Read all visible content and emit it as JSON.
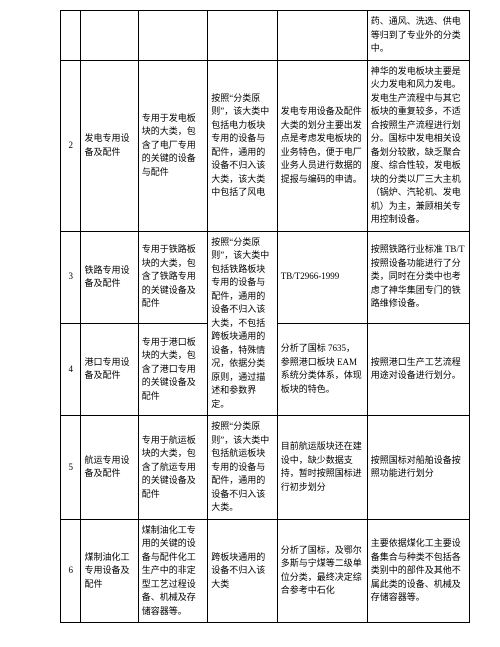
{
  "rows": [
    {
      "id": "",
      "name": "",
      "desc": "",
      "principle": "",
      "analysis": "",
      "note": "药、通风、洗选、供电等归到了专业外的分类中。"
    },
    {
      "id": "2",
      "name": "发电专用设备及配件",
      "desc": "专用于发电板块的大类，包含了电厂专用的关键的设备与配件",
      "principle": "按照“分类原则”，该大类中包括电力板块专用的设备与配件，通用的设备不归入该大类，该大类中包括了风电",
      "analysis": "发电专用设备及配件大类的划分主要出发点是考虑发电板块的业务特色，便于电厂业务人员进行数据的提报与编码的申请。",
      "note": "神华的发电板块主要是火力发电和风力发电。发电生产流程中与其它板块的重复较多，不适合按照生产流程进行划分。国标中发电相关设备划分较散，缺乏聚合度、综合性较，发电板块的分类以厂三大主机（锅炉、汽轮机、发电机）为主，兼顾相关专用控制设备。"
    },
    {
      "id": "3",
      "name": "铁路专用设备及配件",
      "desc": "专用于铁路板块的大类，包含了铁路专用的关键设备及配件",
      "principle": "按照“分类原则”，该大类中包括铁路板块专用的设备与配件，通用的设备不归入该大类，不包括跨板块通用的设备，特殊情况，依据分类原则，通过描述和参数界定。",
      "analysis": "TB/T2966-1999",
      "note": "按照铁路行业标准 TB/T 按照设备功能进行了分类，同时在分类中也考虑了神华集团专门的铁路维修设备。"
    },
    {
      "id": "4",
      "name": "港口专用设备及配件",
      "desc": "专用于港口板块的大类，包含了港口专用的关键设备及配件",
      "principle": "",
      "analysis": "分析了国标 7635，参照港口板块 EAM 系统分类体系，体现板块的特色。",
      "note": "按照港口生产工艺流程用途对设备进行划分。"
    },
    {
      "id": "5",
      "name": "航运专用设备及配件",
      "desc": "专用于航运板块的大类，包含了航运专用的关键设备及配件",
      "principle": "按照“分类原则”，该大类中包括航运板块专用的设备与配件，通用的设备不归入该大类。",
      "analysis": "目前航运版块还在建设中，缺少数据支持，暂时按照国标进行初步划分",
      "note": "按照国标对船舶设备按照功能进行划分"
    },
    {
      "id": "6",
      "name": "煤制油化工专用设备及配件",
      "desc": "煤制油化工专用的关键的设备与配件化工生产中的非定型工艺过程设备、机械及存储容器等。",
      "principle": "跨板块通用的设备不归入该大类",
      "analysis": "分析了国标，及鄂尔多斯与宁煤等二级单位分类，最终决定综合参考中石化",
      "note": "主要依据煤化工主要设备集合与种类不包括各类别中的部件及其他不属此类的设备、机械及存储容器等。"
    }
  ]
}
